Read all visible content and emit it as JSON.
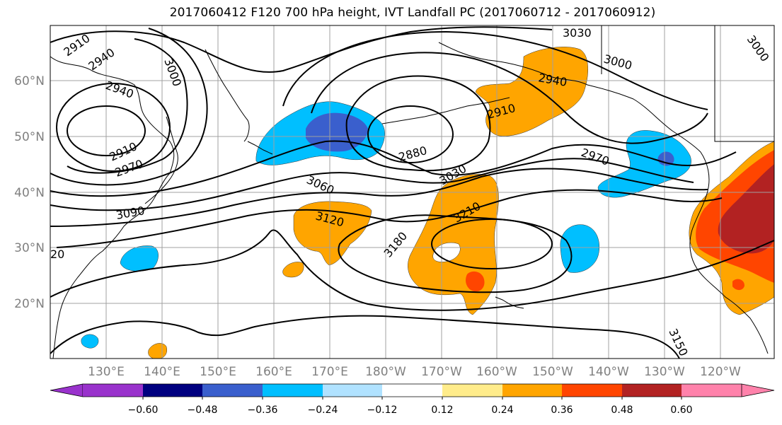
{
  "title": "2017060412 F120 700 hPa height, IVT Landfall PC (2017060712 - 2017060912)",
  "lat_labels": [
    "60°N",
    "50°N",
    "40°N",
    "30°N",
    "20°N"
  ],
  "lon_labels": [
    "130°E",
    "140°E",
    "150°E",
    "160°E",
    "170°E",
    "180°W",
    "170°W",
    "160°W",
    "150°W",
    "140°W",
    "130°W",
    "120°W"
  ],
  "contour_labels": [
    "2910",
    "2940",
    "3000",
    "2940",
    "2910",
    "2970",
    "3090",
    "3060",
    "3120",
    "3030",
    "2880",
    "2910",
    "3180",
    "3210",
    "2970",
    "3030",
    "3000",
    "2940",
    "3000",
    "3150",
    "20"
  ],
  "colorbar": {
    "ticks": [
      "−0.60",
      "−0.48",
      "−0.36",
      "−0.24",
      "−0.12",
      "0.12",
      "0.24",
      "0.36",
      "0.48",
      "0.60"
    ],
    "colors": [
      "#9932CC",
      "#000080",
      "#3A5FCD",
      "#00BFFF",
      "#B0E2FF",
      "#FFFFFF",
      "#FFEC8B",
      "#FFA500",
      "#FF4500",
      "#B22222",
      "#FF82AB"
    ]
  },
  "colors": {
    "strong_negative": "#3A5FCD",
    "negative": "#00BFFF",
    "weak_positive": "#FFEC8B",
    "positive": "#FFA500",
    "strong_positive": "#FF4500",
    "very_strong_positive": "#B22222",
    "grid": "#A0A0A0",
    "coast": "#000000"
  }
}
